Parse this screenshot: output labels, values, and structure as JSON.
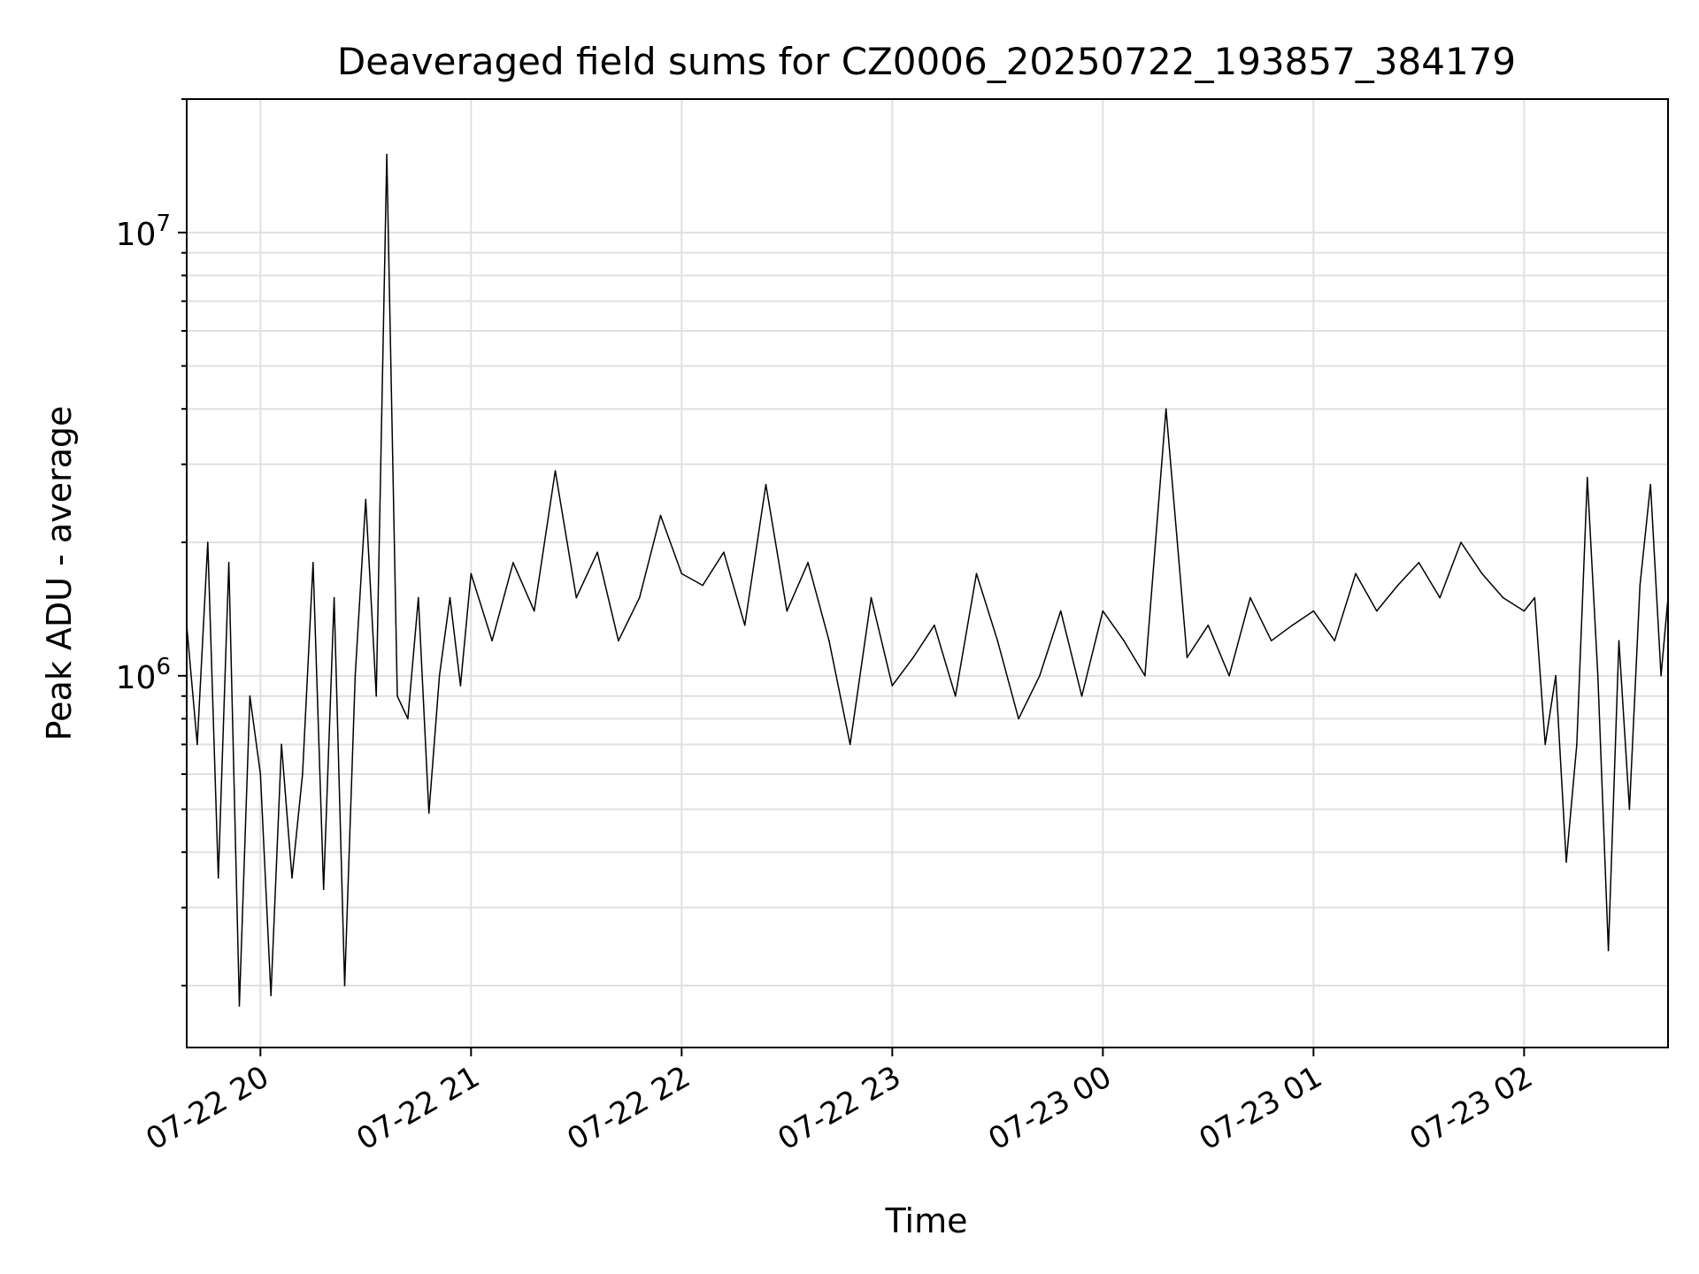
{
  "chart_data": {
    "type": "line",
    "title": "Deaveraged field sums for CZ0006_20250722_193857_384179",
    "xlabel": "Time",
    "ylabel": "Peak ADU - average",
    "yscale": "log",
    "xlim": [
      "2025-07-22 19:39",
      "2025-07-23 02:41"
    ],
    "ylim": [
      145000.0,
      20000000.0
    ],
    "grid": true,
    "legend": "none",
    "line_color": "#000000",
    "grid_color": "#e0e0e0",
    "x_ticks": [
      {
        "value": "2025-07-22 20:00",
        "label": "07-22 20"
      },
      {
        "value": "2025-07-22 21:00",
        "label": "07-22 21"
      },
      {
        "value": "2025-07-22 22:00",
        "label": "07-22 22"
      },
      {
        "value": "2025-07-22 23:00",
        "label": "07-22 23"
      },
      {
        "value": "2025-07-23 00:00",
        "label": "07-23 00"
      },
      {
        "value": "2025-07-23 01:00",
        "label": "07-23 01"
      },
      {
        "value": "2025-07-23 02:00",
        "label": "07-23 02"
      }
    ],
    "y_ticks": [
      {
        "value": 1000000,
        "base": "10",
        "exp": "6"
      },
      {
        "value": 10000000,
        "base": "10",
        "exp": "7"
      }
    ],
    "series": [
      {
        "x": [
          "2025-07-22 19:39",
          "2025-07-22 19:42",
          "2025-07-22 19:45",
          "2025-07-22 19:48",
          "2025-07-22 19:51",
          "2025-07-22 19:54",
          "2025-07-22 19:57",
          "2025-07-22 20:00",
          "2025-07-22 20:03",
          "2025-07-22 20:06",
          "2025-07-22 20:09",
          "2025-07-22 20:12",
          "2025-07-22 20:15",
          "2025-07-22 20:18",
          "2025-07-22 20:21",
          "2025-07-22 20:24",
          "2025-07-22 20:27",
          "2025-07-22 20:30",
          "2025-07-22 20:33",
          "2025-07-22 20:36",
          "2025-07-22 20:39",
          "2025-07-22 20:42",
          "2025-07-22 20:45",
          "2025-07-22 20:48",
          "2025-07-22 20:51",
          "2025-07-22 20:54",
          "2025-07-22 20:57",
          "2025-07-22 21:00",
          "2025-07-22 21:06",
          "2025-07-22 21:12",
          "2025-07-22 21:18",
          "2025-07-22 21:24",
          "2025-07-22 21:30",
          "2025-07-22 21:36",
          "2025-07-22 21:42",
          "2025-07-22 21:48",
          "2025-07-22 21:54",
          "2025-07-22 22:00",
          "2025-07-22 22:06",
          "2025-07-22 22:12",
          "2025-07-22 22:18",
          "2025-07-22 22:24",
          "2025-07-22 22:30",
          "2025-07-22 22:36",
          "2025-07-22 22:42",
          "2025-07-22 22:48",
          "2025-07-22 22:54",
          "2025-07-22 23:00",
          "2025-07-22 23:06",
          "2025-07-22 23:12",
          "2025-07-22 23:18",
          "2025-07-22 23:24",
          "2025-07-22 23:30",
          "2025-07-22 23:36",
          "2025-07-22 23:42",
          "2025-07-22 23:48",
          "2025-07-22 23:54",
          "2025-07-23 00:00",
          "2025-07-23 00:06",
          "2025-07-23 00:12",
          "2025-07-23 00:18",
          "2025-07-23 00:24",
          "2025-07-23 00:30",
          "2025-07-23 00:36",
          "2025-07-23 00:42",
          "2025-07-23 00:48",
          "2025-07-23 00:54",
          "2025-07-23 01:00",
          "2025-07-23 01:06",
          "2025-07-23 01:12",
          "2025-07-23 01:18",
          "2025-07-23 01:24",
          "2025-07-23 01:30",
          "2025-07-23 01:36",
          "2025-07-23 01:42",
          "2025-07-23 01:48",
          "2025-07-23 01:54",
          "2025-07-23 02:00",
          "2025-07-23 02:03",
          "2025-07-23 02:06",
          "2025-07-23 02:09",
          "2025-07-23 02:12",
          "2025-07-23 02:15",
          "2025-07-23 02:18",
          "2025-07-23 02:21",
          "2025-07-23 02:24",
          "2025-07-23 02:27",
          "2025-07-23 02:30",
          "2025-07-23 02:33",
          "2025-07-23 02:36",
          "2025-07-23 02:39",
          "2025-07-23 02:41"
        ],
        "y": [
          1300000,
          700000,
          2000000,
          350000,
          1800000,
          180000,
          900000,
          600000,
          190000,
          700000,
          350000,
          600000,
          1800000,
          330000,
          1500000,
          200000,
          1000000,
          2500000,
          900000,
          15000000,
          900000,
          800000,
          1500000,
          490000,
          1000000,
          1500000,
          950000,
          1700000,
          1200000,
          1800000,
          1400000,
          2900000,
          1500000,
          1900000,
          1200000,
          1500000,
          2300000,
          1700000,
          1600000,
          1900000,
          1300000,
          2700000,
          1400000,
          1800000,
          1200000,
          700000,
          1500000,
          950000,
          1100000,
          1300000,
          900000,
          1700000,
          1200000,
          800000,
          1000000,
          1400000,
          900000,
          1400000,
          1200000,
          1000000,
          4000000,
          1100000,
          1300000,
          1000000,
          1500000,
          1200000,
          1300000,
          1400000,
          1200000,
          1700000,
          1400000,
          1600000,
          1800000,
          1500000,
          2000000,
          1700000,
          1500000,
          1400000,
          1500000,
          700000,
          1000000,
          380000,
          700000,
          2800000,
          1000000,
          240000,
          1200000,
          500000,
          1600000,
          2700000,
          1000000,
          1500000
        ]
      }
    ]
  }
}
